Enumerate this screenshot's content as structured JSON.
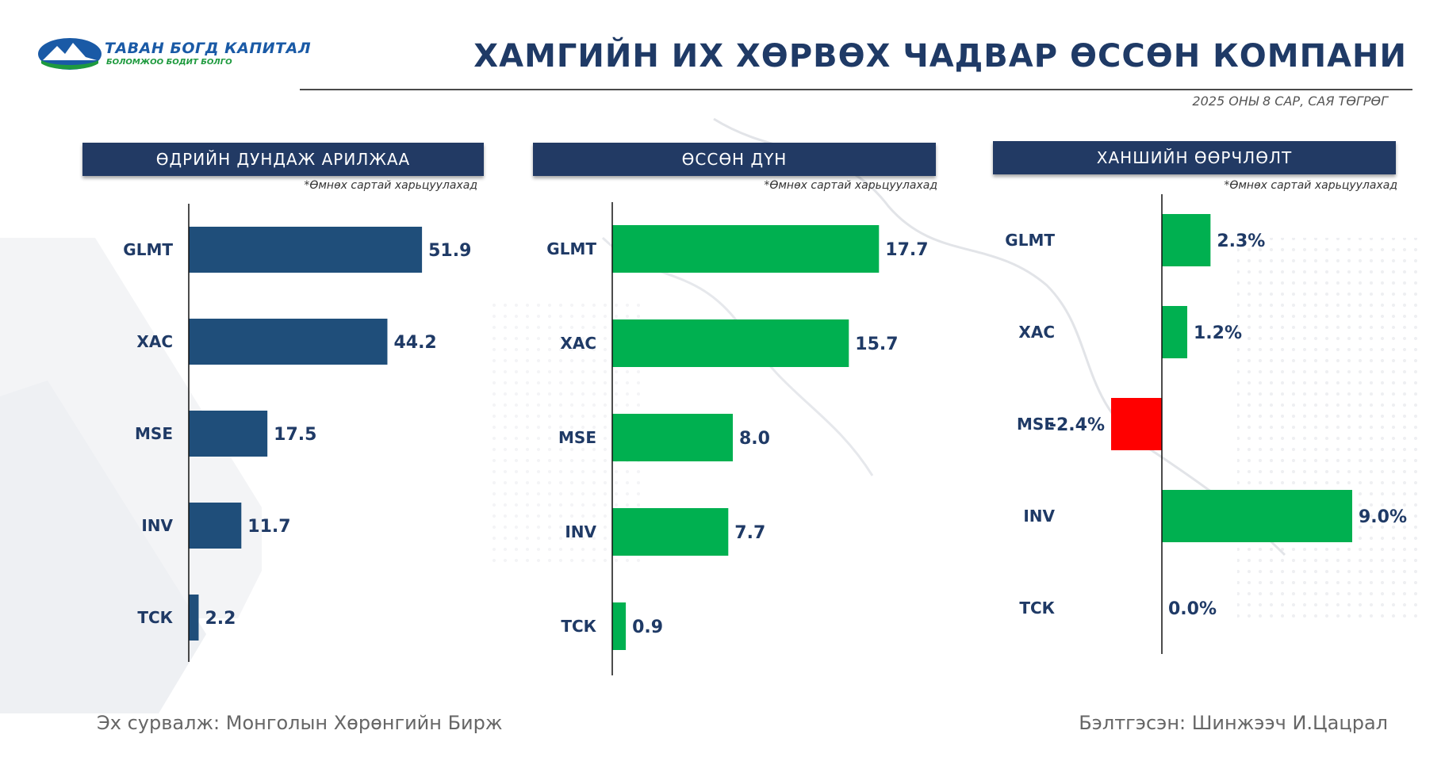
{
  "brand": {
    "name": "ТАВАН БОГД КАПИТАЛ",
    "tagline": "БОЛОМЖОО БОДИТ БОЛГО",
    "colors": {
      "navy": "#223a64",
      "blue": "#1a5aa6",
      "green": "#1e9a3e"
    }
  },
  "header": {
    "title": "ХАМГИЙН ИХ ХӨРВӨХ ЧАДВАР ӨССӨН КОМПАНИ",
    "subtitle": "2025 ОНЫ 8 САР, САЯ ТӨГРӨГ"
  },
  "chart_data": [
    {
      "type": "bar",
      "orientation": "horizontal",
      "title": "ӨДРИЙН ДУНДАЖ АРИЛЖАА",
      "note": "*Өмнөх сартай харьцуулахад",
      "categories": [
        "GLMT",
        "ХАС",
        "MSE",
        "INV",
        "ТСК"
      ],
      "values": [
        51.9,
        44.2,
        17.5,
        11.7,
        2.2
      ],
      "value_labels": [
        "51.9",
        "44.2",
        "17.5",
        "11.7",
        "2.2"
      ],
      "xlim": [
        0,
        60
      ],
      "color": "#1f4e7a"
    },
    {
      "type": "bar",
      "orientation": "horizontal",
      "title": "ӨССӨН ДҮН",
      "note": "*Өмнөх сартай харьцуулахад",
      "categories": [
        "GLMT",
        "ХАС",
        "MSE",
        "INV",
        "ТСК"
      ],
      "values": [
        17.7,
        15.7,
        8.0,
        7.7,
        0.9
      ],
      "value_labels": [
        "17.7",
        "15.7",
        "8.0",
        "7.7",
        "0.9"
      ],
      "xlim": [
        0,
        20
      ],
      "color": "#00b050"
    },
    {
      "type": "bar",
      "orientation": "horizontal",
      "title": "ХАНШИЙН ӨӨРЧЛӨЛТ",
      "note": "*Өмнөх сартай харьцуулахад",
      "categories": [
        "GLMT",
        "ХАС",
        "MSE",
        "INV",
        "ТСК"
      ],
      "values": [
        2.3,
        1.2,
        -2.4,
        9.0,
        0.0
      ],
      "value_labels": [
        "2.3%",
        "1.2%",
        "-2.4%",
        "9.0%",
        "0.0%"
      ],
      "xlim": [
        -4.2,
        12
      ],
      "color": "#00b050",
      "negative_color": "#ff0000"
    }
  ],
  "footer": {
    "source": "Эх сурвалж: Монголын Хөрөнгийн Бирж",
    "prepared_by": "Бэлтгэсэн: Шинжээч И.Цацрал"
  }
}
